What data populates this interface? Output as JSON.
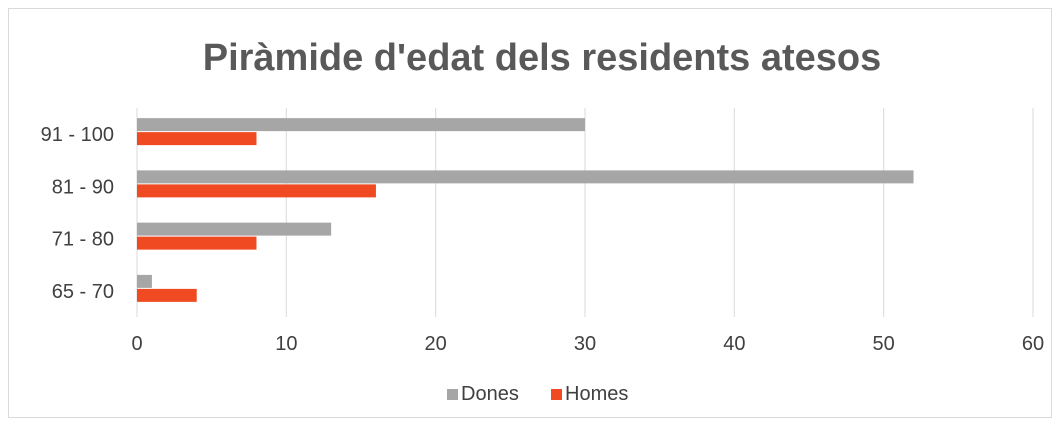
{
  "chart_data": {
    "type": "bar",
    "orientation": "horizontal",
    "title": "Piràmide d'edat dels residents atesos",
    "categories": [
      "91 - 100",
      "81 - 90",
      "71 - 80",
      "65 - 70"
    ],
    "series": [
      {
        "name": "Dones",
        "values": [
          30,
          52,
          13,
          1
        ],
        "color": "#a6a6a6"
      },
      {
        "name": "Homes",
        "values": [
          8,
          16,
          8,
          4
        ],
        "color": "#f04a23"
      }
    ],
    "x_ticks": [
      "0",
      "10",
      "20",
      "30",
      "40",
      "50",
      "60"
    ],
    "xlim": [
      0,
      60
    ],
    "grid": true,
    "legend_position": "bottom"
  }
}
